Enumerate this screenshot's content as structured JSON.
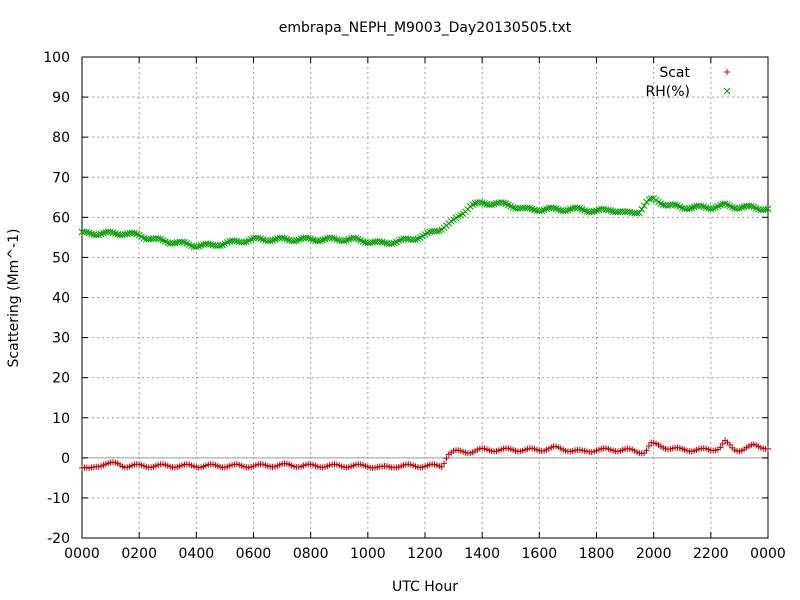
{
  "chart_data": {
    "type": "scatter",
    "title": "embrapa_NEPH_M9003_Day20130505.txt",
    "xlabel": "UTC Hour",
    "ylabel": "Scattering (Mm^-1)",
    "xlim": [
      0,
      24
    ],
    "ylim": [
      -20,
      100
    ],
    "x_ticks": [
      0,
      2,
      4,
      6,
      8,
      10,
      12,
      14,
      16,
      18,
      20,
      22,
      24
    ],
    "x_tick_labels": [
      "0000",
      "0200",
      "0400",
      "0600",
      "0800",
      "1000",
      "1200",
      "1400",
      "1600",
      "1800",
      "2000",
      "2200",
      "0000"
    ],
    "y_ticks": [
      -20,
      -10,
      0,
      10,
      20,
      30,
      40,
      50,
      60,
      70,
      80,
      90,
      100
    ],
    "y_tick_labels": [
      "-20",
      "-10",
      "0",
      "10",
      "20",
      "30",
      "40",
      "50",
      "60",
      "70",
      "80",
      "90",
      "100"
    ],
    "grid": true,
    "zero_line": true,
    "legend_position": "top-right",
    "series": [
      {
        "name": "Scat",
        "marker": "+",
        "color": "#cc0000",
        "x": [
          0.0,
          0.25,
          0.5,
          0.75,
          1.0,
          1.25,
          1.5,
          2.0,
          3.0,
          4.0,
          5.0,
          6.0,
          7.0,
          8.0,
          9.0,
          10.0,
          10.5,
          11.0,
          12.0,
          12.6,
          12.8,
          13.0,
          13.5,
          14.0,
          15.0,
          16.0,
          16.5,
          17.0,
          17.5,
          18.0,
          19.0,
          19.5,
          19.7,
          19.9,
          20.2,
          20.5,
          21.0,
          22.0,
          22.3,
          22.5,
          22.8,
          23.0,
          23.5,
          24.0
        ],
        "y": [
          -2.5,
          -3.0,
          -2.0,
          -1.5,
          -1.5,
          -1.5,
          -2.0,
          -2.0,
          -2.0,
          -2.0,
          -2.0,
          -2.0,
          -1.8,
          -2.0,
          -2.0,
          -2.0,
          -2.5,
          -2.0,
          -2.0,
          -2.0,
          1.0,
          1.5,
          1.5,
          2.0,
          2.0,
          2.0,
          2.5,
          2.0,
          1.5,
          2.0,
          2.0,
          1.5,
          1.5,
          3.5,
          3.0,
          2.5,
          2.0,
          2.0,
          2.5,
          4.0,
          2.0,
          2.0,
          3.0,
          2.5
        ]
      },
      {
        "name": "RH(%)",
        "marker": "x",
        "color": "#00a000",
        "x": [
          0.0,
          0.5,
          1.0,
          1.5,
          2.0,
          2.5,
          3.0,
          3.5,
          4.0,
          4.5,
          5.0,
          5.5,
          6.0,
          6.5,
          7.0,
          7.5,
          8.0,
          8.5,
          9.0,
          9.5,
          10.0,
          10.5,
          11.0,
          11.5,
          12.0,
          12.5,
          13.0,
          13.3,
          13.6,
          14.0,
          14.5,
          15.0,
          15.5,
          16.0,
          16.5,
          17.0,
          17.5,
          18.0,
          18.5,
          19.0,
          19.5,
          19.8,
          20.0,
          20.5,
          21.0,
          21.5,
          22.0,
          22.5,
          23.0,
          23.5,
          24.0
        ],
        "y": [
          56,
          56,
          56,
          56,
          55.5,
          54.5,
          54,
          53.5,
          53,
          53,
          53.5,
          54,
          54.5,
          54.5,
          54.5,
          54.5,
          54.5,
          54.5,
          54.5,
          54.5,
          54,
          53.5,
          54,
          54.5,
          55.5,
          57,
          59,
          61,
          63,
          63.5,
          63.5,
          63,
          62,
          62,
          62,
          62,
          62,
          61.5,
          62,
          61,
          61.5,
          64,
          64.5,
          63,
          62.5,
          62.5,
          62.5,
          63,
          62.5,
          62.5,
          62
        ]
      }
    ]
  }
}
